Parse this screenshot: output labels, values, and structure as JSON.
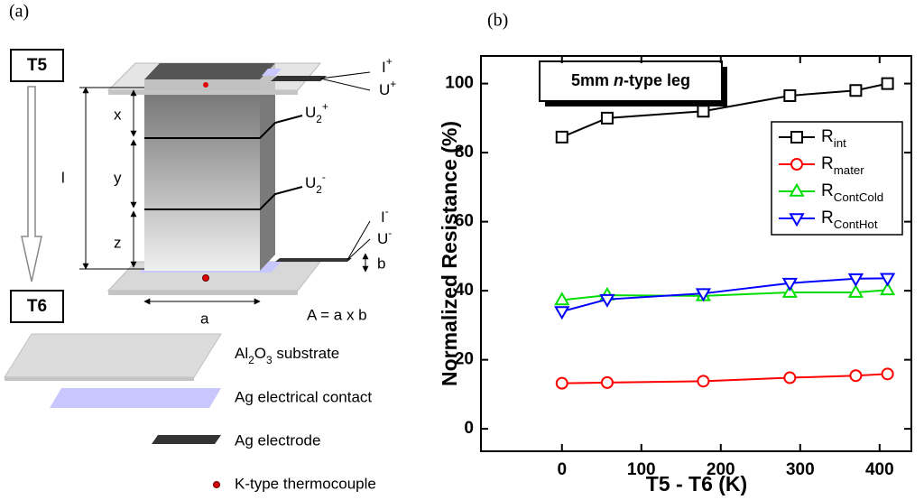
{
  "panel_a": {
    "label": "(a)",
    "top_temp": "T5",
    "bottom_temp": "T6",
    "dims": {
      "l": "l",
      "x": "x",
      "y": "y",
      "z": "z",
      "a": "a",
      "b": "b",
      "area": "A = a x b"
    },
    "probes": {
      "i_plus": "I+",
      "u_plus": "U+",
      "u2_plus": "U2+",
      "u2_minus": "U2-",
      "i_minus": "I-",
      "u_minus": "U-"
    },
    "legend": [
      "Al2O3 substrate",
      "Ag electrical contact",
      "Ag electrode",
      "K-type thermocouple"
    ]
  },
  "chart_data": {
    "type": "line",
    "panel_label": "(b)",
    "annotation": "5mm n-type leg",
    "x_label": "T5 - T6 (K)",
    "y_label": "Normalized Resistance (%)",
    "x": [
      0,
      57,
      178,
      287,
      370,
      410
    ],
    "series": [
      {
        "name": "Rint",
        "color": "#000000",
        "marker": "square",
        "values": [
          84.5,
          90,
          92,
          96.5,
          98,
          100
        ]
      },
      {
        "name": "Rmater",
        "color": "#ff0000",
        "marker": "circle",
        "values": [
          13.2,
          13.4,
          13.8,
          14.8,
          15.4,
          15.9
        ]
      },
      {
        "name": "RContCold",
        "color": "#00dd00",
        "marker": "triangle-up",
        "values": [
          37.3,
          38.7,
          38.5,
          39.5,
          39.5,
          40.2
        ]
      },
      {
        "name": "RContHot",
        "color": "#0000ff",
        "marker": "triangle-down",
        "values": [
          34,
          37.5,
          39.2,
          42.2,
          43.5,
          43.6
        ]
      }
    ],
    "xlim": [
      -102,
      440
    ],
    "ylim": [
      -6.5,
      108
    ],
    "xticks": [
      0,
      100,
      200,
      300,
      400
    ],
    "yticks": [
      0,
      20,
      40,
      60,
      80,
      100
    ],
    "legend": "upper right"
  }
}
